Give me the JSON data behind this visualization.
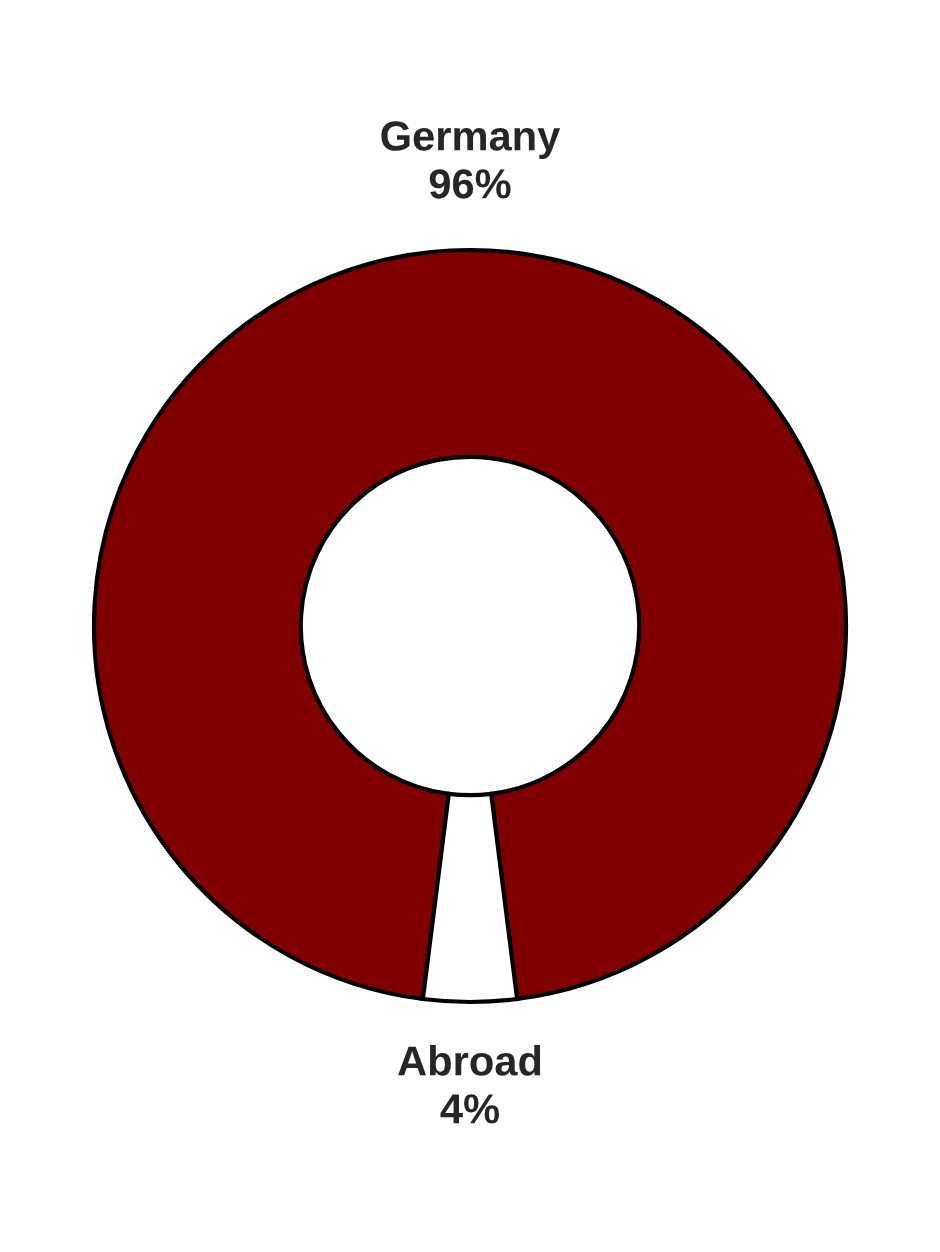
{
  "chart_data": {
    "type": "donut",
    "categories": [
      "Germany",
      "Abroad"
    ],
    "values": [
      96,
      4
    ],
    "value_labels": [
      "96%",
      "4%"
    ],
    "colors": [
      "#800000",
      "#ffffff"
    ],
    "legend": false
  }
}
